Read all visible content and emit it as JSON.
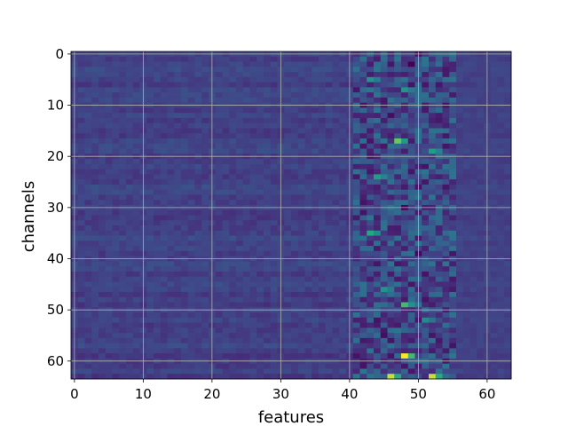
{
  "chart_data": {
    "type": "heatmap",
    "xlabel": "features",
    "ylabel": "channels",
    "xlim": [
      -0.5,
      63.5
    ],
    "ylim": [
      63.5,
      -0.5
    ],
    "y_inverted": true,
    "x_ticks": [
      0,
      10,
      20,
      30,
      40,
      50,
      60
    ],
    "y_ticks": [
      0,
      10,
      20,
      30,
      40,
      50,
      60
    ],
    "x_tick_labels": [
      "0",
      "10",
      "20",
      "30",
      "40",
      "50",
      "60"
    ],
    "y_tick_labels": [
      "0",
      "10",
      "20",
      "30",
      "40",
      "50",
      "60"
    ],
    "grid": true,
    "colormap": "viridis",
    "shape": [
      64,
      64
    ],
    "value_range": [
      0,
      1
    ],
    "note_values": "normalized cell intensities; quiet region features 0-40, strong activity features 41-55",
    "hot_cells": [
      {
        "channel": 59,
        "feature": 48,
        "value": 1.0
      },
      {
        "channel": 63,
        "feature": 46,
        "value": 0.95
      },
      {
        "channel": 63,
        "feature": 52,
        "value": 0.95
      },
      {
        "channel": 17,
        "feature": 47,
        "value": 0.85
      },
      {
        "channel": 49,
        "feature": 48,
        "value": 0.8
      },
      {
        "channel": 35,
        "feature": 43,
        "value": 0.75
      },
      {
        "channel": 24,
        "feature": 44,
        "value": 0.7
      },
      {
        "channel": 5,
        "feature": 43,
        "value": 0.65
      },
      {
        "channel": 46,
        "feature": 45,
        "value": 0.65
      },
      {
        "channel": 19,
        "feature": 52,
        "value": 0.7
      },
      {
        "channel": 7,
        "feature": 48,
        "value": 0.65
      },
      {
        "channel": 52,
        "feature": 51,
        "value": 0.6
      }
    ],
    "cold_cells": [
      {
        "channel": 2,
        "feature": 49,
        "value": 0.0
      },
      {
        "channel": 30,
        "feature": 48,
        "value": 0.02
      },
      {
        "channel": 39,
        "feature": 50,
        "value": 0.03
      },
      {
        "channel": 12,
        "feature": 46,
        "value": 0.05
      },
      {
        "channel": 55,
        "feature": 45,
        "value": 0.05
      }
    ]
  }
}
